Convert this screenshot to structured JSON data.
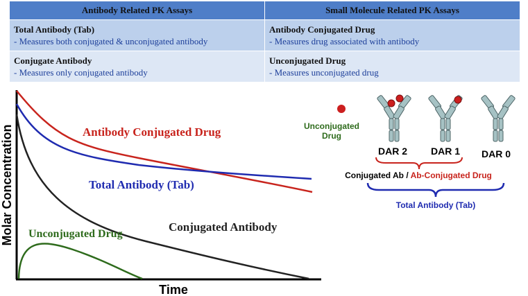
{
  "table": {
    "headers": [
      "Antibody Related PK Assays",
      "Small Molecule Related PK Assays"
    ],
    "rows": [
      [
        {
          "title": "Total Antibody (Tab)",
          "desc": "- Measures both conjugated & unconjugated antibody"
        },
        {
          "title": "Antibody Conjugated Drug",
          "desc": "- Measures drug associated with antibody"
        }
      ],
      [
        {
          "title": "Conjugate Antibody",
          "desc": "- Measures only conjugated antibody"
        },
        {
          "title": "Unconjugated Drug",
          "desc": "- Measures unconjugated drug"
        }
      ]
    ]
  },
  "plot": {
    "ylabel": "Molar Concentration",
    "xlabel": "Time",
    "curves": {
      "acd": {
        "label": "Antibody Conjugated Drug",
        "color": "#c8241d"
      },
      "tab": {
        "label": "Total Antibody (Tab)",
        "color": "#1f2bb0"
      },
      "conj": {
        "label": "Conjugated Antibody",
        "color": "#222222"
      },
      "unconj": {
        "label": "Unconjugated Drug",
        "color": "#2e6b1c"
      }
    }
  },
  "schematic": {
    "unconjugated_label_1": "Unconjugated",
    "unconjugated_label_2": "Drug",
    "dar2": "DAR 2",
    "dar1": "DAR 1",
    "dar0": "DAR 0",
    "conj_ab": "Conjugated Ab",
    "slash": " / ",
    "ab_conj_drug": "Ab-Conjugated Drug",
    "total_ab": "Total Antibody (Tab)",
    "colors": {
      "antibody": "#a6c2c4",
      "antibody_edge": "#4d6466",
      "drug": "#cc1f1f",
      "red_brace": "#c8241d",
      "blue_brace": "#1f2bb0"
    }
  }
}
